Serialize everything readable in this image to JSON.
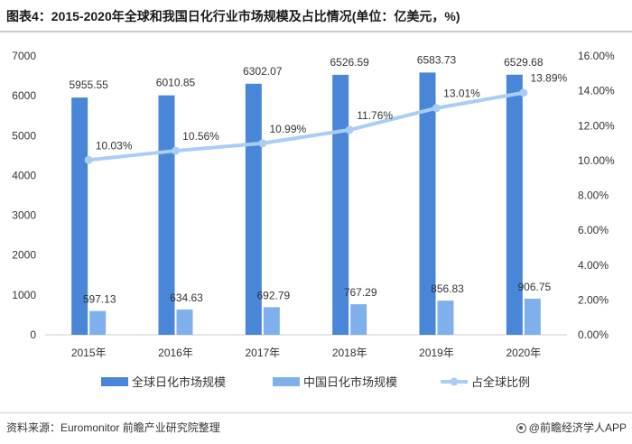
{
  "title": "图表4：2015-2020年全球和我国日化行业市场规模及占比情况(单位：亿美元，%)",
  "source": "资料来源：Euromonitor 前瞻产业研究院整理",
  "brand": "@前瞻经济学人APP",
  "colors": {
    "global": "#4a86d8",
    "china": "#7fb0ec",
    "ratio": "#a9cdf5",
    "axis": "#cfcfcf"
  },
  "chart_data": {
    "type": "bar",
    "categories": [
      "2015年",
      "2016年",
      "2017年",
      "2018年",
      "2019年",
      "2020年"
    ],
    "series": [
      {
        "name": "全球日化市场规模",
        "type": "bar",
        "axis": "left",
        "values": [
          5955.55,
          6010.85,
          6302.07,
          6526.59,
          6583.73,
          6529.68
        ],
        "labels": [
          "5955.55",
          "6010.85",
          "6302.07",
          "6526.59",
          "6583.73",
          "6529.68"
        ]
      },
      {
        "name": "中国日化市场规模",
        "type": "bar",
        "axis": "left",
        "values": [
          597.13,
          634.63,
          692.79,
          767.29,
          856.83,
          906.75
        ],
        "labels": [
          "597.13",
          "634.63",
          "692.79",
          "767.29",
          "856.83",
          "906.75"
        ]
      },
      {
        "name": "占全球比例",
        "type": "line",
        "axis": "right",
        "values": [
          10.03,
          10.56,
          10.99,
          11.76,
          13.01,
          13.89
        ],
        "labels": [
          "10.03%",
          "10.56%",
          "10.99%",
          "11.76%",
          "13.01%",
          "13.89%"
        ]
      }
    ],
    "ylim_left": [
      0,
      7000
    ],
    "ylim_right": [
      0,
      16
    ],
    "yticks_left": [
      "0",
      "1000",
      "2000",
      "3000",
      "4000",
      "5000",
      "6000",
      "7000"
    ],
    "yticks_right": [
      "0.00%",
      "2.00%",
      "4.00%",
      "6.00%",
      "8.00%",
      "10.00%",
      "12.00%",
      "14.00%",
      "16.00%"
    ],
    "grid": false,
    "legend_position": "bottom"
  }
}
